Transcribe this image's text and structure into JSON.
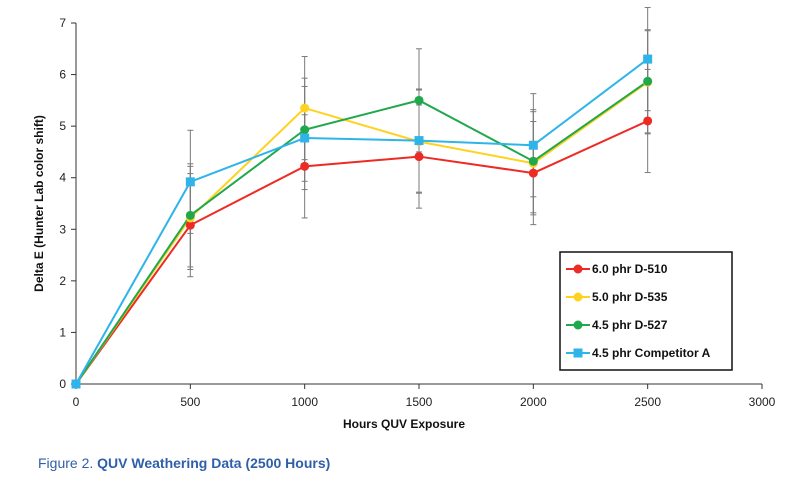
{
  "caption": {
    "prefix": "Figure 2.",
    "title": "QUV Weathering Data (2500 Hours)"
  },
  "chart_data": {
    "type": "line",
    "title": "",
    "xlabel": "Hours QUV Exposure",
    "ylabel": "Delta E (Hunter Lab color shift)",
    "xlim": [
      0,
      3000
    ],
    "ylim": [
      0,
      7
    ],
    "xticks": [
      0,
      500,
      1000,
      1500,
      2000,
      2500,
      3000
    ],
    "yticks": [
      0,
      1,
      2,
      3,
      4,
      5,
      6,
      7
    ],
    "grid": false,
    "legend_position": "bottom-right",
    "x": [
      0,
      500,
      1000,
      1500,
      2000,
      2500
    ],
    "series": [
      {
        "name": "6.0 phr D-510",
        "color": "#ee2a24",
        "marker": "circle",
        "values": [
          0,
          3.08,
          4.22,
          4.41,
          4.09,
          5.1
        ],
        "error": [
          0,
          1.0,
          1.0,
          1.0,
          1.0,
          1.0
        ]
      },
      {
        "name": "5.0 phr D-535",
        "color": "#ffd21f",
        "marker": "circle",
        "values": [
          0,
          3.22,
          5.35,
          4.7,
          4.28,
          5.85
        ],
        "error": [
          0,
          1.0,
          1.0,
          1.0,
          1.0,
          1.0
        ]
      },
      {
        "name": "4.5 phr D-527",
        "color": "#20a84c",
        "marker": "circle",
        "values": [
          0,
          3.27,
          4.93,
          5.5,
          4.32,
          5.87
        ],
        "error": [
          0,
          1.0,
          1.0,
          1.0,
          1.0,
          1.0
        ]
      },
      {
        "name": "4.5 phr Competitor A",
        "color": "#2fb4ea",
        "marker": "square",
        "values": [
          0,
          3.92,
          4.77,
          4.72,
          4.63,
          6.3
        ],
        "error": [
          0,
          1.0,
          1.0,
          1.0,
          1.0,
          1.0
        ]
      }
    ]
  }
}
